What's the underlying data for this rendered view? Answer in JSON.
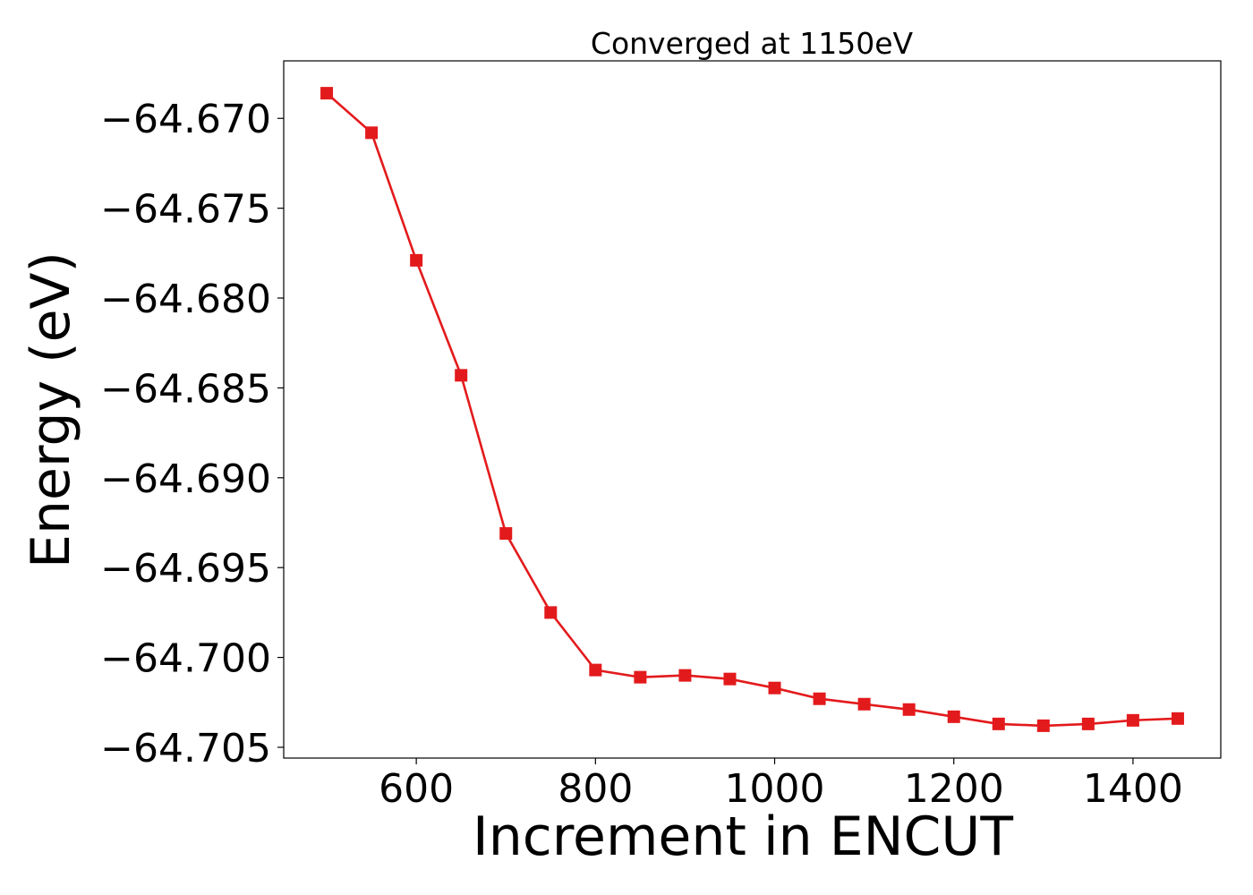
{
  "chart_data": {
    "type": "line",
    "title": "Converged at 1150eV",
    "xlabel": "Increment in ENCUT",
    "ylabel": "Energy (eV)",
    "xlim": [
      452,
      1498
    ],
    "ylim": [
      -64.7056,
      -64.6668
    ],
    "xticks": [
      {
        "value": 600,
        "label": "600"
      },
      {
        "value": 800,
        "label": "800"
      },
      {
        "value": 1000,
        "label": "1000"
      },
      {
        "value": 1200,
        "label": "1200"
      },
      {
        "value": 1400,
        "label": "1400"
      }
    ],
    "yticks": [
      {
        "value": -64.67,
        "label": "−64.670"
      },
      {
        "value": -64.675,
        "label": "−64.675"
      },
      {
        "value": -64.68,
        "label": "−64.680"
      },
      {
        "value": -64.685,
        "label": "−64.685"
      },
      {
        "value": -64.69,
        "label": "−64.690"
      },
      {
        "value": -64.695,
        "label": "−64.695"
      },
      {
        "value": -64.7,
        "label": "−64.700"
      },
      {
        "value": -64.705,
        "label": "−64.705"
      }
    ],
    "grid": false,
    "legend": "none",
    "series": [
      {
        "color": "#e31a1c",
        "marker": "square",
        "x": [
          500,
          550,
          600,
          650,
          700,
          750,
          800,
          850,
          900,
          950,
          1000,
          1050,
          1100,
          1150,
          1200,
          1250,
          1300,
          1350,
          1400,
          1450
        ],
        "y": [
          -64.6686,
          -64.6708,
          -64.6779,
          -64.6843,
          -64.6931,
          -64.6975,
          -64.7007,
          -64.7011,
          -64.701,
          -64.7012,
          -64.7017,
          -64.7023,
          -64.7026,
          -64.7029,
          -64.7033,
          -64.7037,
          -64.7038,
          -64.7037,
          -64.7035,
          -64.7034
        ]
      }
    ]
  }
}
